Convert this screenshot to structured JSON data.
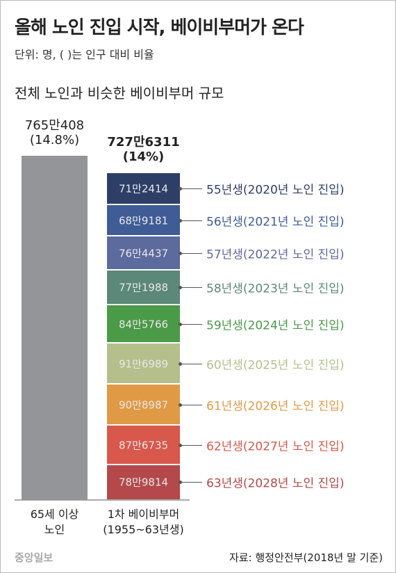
{
  "chart_data": {
    "type": "stacked-bar",
    "title": "올해 노인 진입 시작, 베이비부머가 온다",
    "subtitle": "단위: 명, ( )는 인구 대비 비율",
    "heading": "전체 노인과 비슷한 베이비부머 규모",
    "bars": [
      {
        "label": "65세 이상\n노인",
        "value": 7650408,
        "value_label": "765만408",
        "share": {
          "value": 14.8,
          "label": "(14.8%)"
        },
        "color": "#939598"
      },
      {
        "label": "1차 베이비부머\n(1955~63년생)",
        "value": 7276311,
        "value_label": "727만6311",
        "share": {
          "value": 14,
          "label": "(14%)"
        },
        "segments": [
          {
            "name": "55년생(2020년 노인 진입)",
            "value": 712414,
            "value_label": "71만2414",
            "color": "#2d3f66"
          },
          {
            "name": "56년생(2021년 노인 진입)",
            "value": 689181,
            "value_label": "68만9181",
            "color": "#3f5c96"
          },
          {
            "name": "57년생(2022년 노인 진입)",
            "value": 764437,
            "value_label": "76만4437",
            "color": "#5c6a9e"
          },
          {
            "name": "58년생(2023년 노인 진입)",
            "value": 771988,
            "value_label": "77만1988",
            "color": "#5b8878"
          },
          {
            "name": "59년생(2024년 노인 진입)",
            "value": 845766,
            "value_label": "84만5766",
            "color": "#4b9a48"
          },
          {
            "name": "60년생(2025년 노인 진입)",
            "value": 916989,
            "value_label": "91만6989",
            "color": "#b4bf8c"
          },
          {
            "name": "61년생(2026년 노인 진입)",
            "value": 908987,
            "value_label": "90만8987",
            "color": "#e09a45"
          },
          {
            "name": "62년생(2027년 노인 진입)",
            "value": 876735,
            "value_label": "87만6735",
            "color": "#d8584b"
          },
          {
            "name": "63년생(2028년 노인 진입)",
            "value": 789814,
            "value_label": "78만9814",
            "color": "#b5484a"
          }
        ]
      }
    ],
    "source": "자료: 행정안전부(2018년 말 기준)",
    "logo": "중앙일보"
  }
}
